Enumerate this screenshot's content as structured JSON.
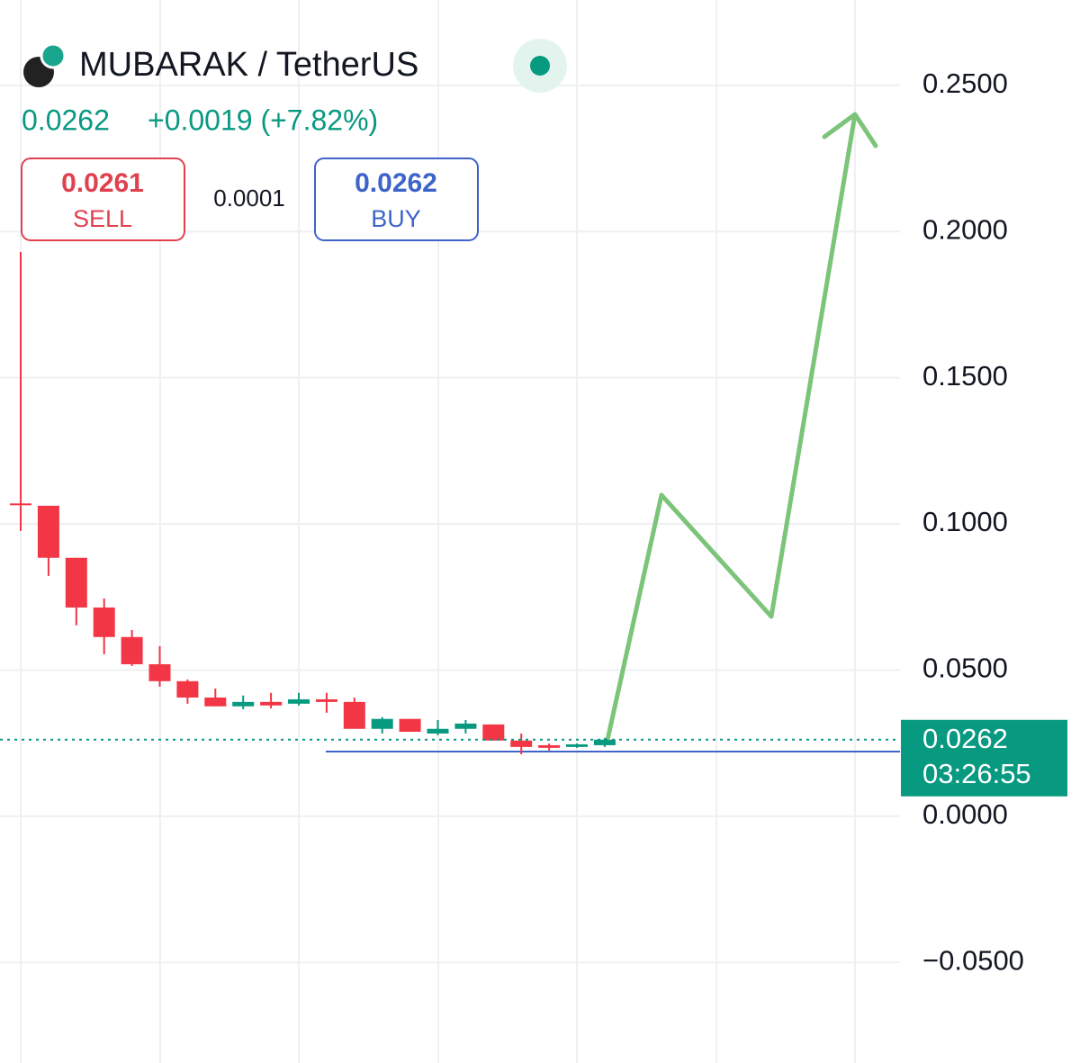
{
  "header": {
    "title": "MUBARAK / TetherUS",
    "price": 0.0262,
    "change": "+0.0019 (+7.82%)",
    "sell_price": "0.0261",
    "sell_label": "SELL",
    "spread": "0.0001",
    "buy_price": "0.0262",
    "buy_label": "BUY"
  },
  "chart_data": {
    "type": "candlestick",
    "open": [
      0.107,
      0.1062,
      0.0884,
      0.0714,
      0.0613,
      0.052,
      0.0462,
      0.0406,
      0.0376,
      0.0391,
      0.0385,
      0.04,
      0.0391,
      0.0299,
      0.0333,
      0.0283,
      0.0299,
      0.0314,
      0.0259,
      0.0243,
      0.0237,
      0.0243
    ],
    "high": [
      0.193,
      0.1062,
      0.0884,
      0.0745,
      0.0637,
      0.0582,
      0.0468,
      0.0437,
      0.0413,
      0.0422,
      0.0422,
      0.0422,
      0.0406,
      0.0339,
      0.0333,
      0.0329,
      0.0329,
      0.0314,
      0.0283,
      0.0249,
      0.0249,
      0.0268
    ],
    "low": [
      0.0976,
      0.0822,
      0.0653,
      0.0554,
      0.0514,
      0.0443,
      0.0385,
      0.0376,
      0.0366,
      0.0369,
      0.0379,
      0.0354,
      0.0299,
      0.0283,
      0.0289,
      0.0277,
      0.0283,
      0.0259,
      0.0212,
      0.0225,
      0.0234,
      0.0237
    ],
    "close": [
      0.1065,
      0.0884,
      0.0714,
      0.0613,
      0.052,
      0.0462,
      0.0406,
      0.0376,
      0.0391,
      0.0379,
      0.04,
      0.0391,
      0.0299,
      0.0333,
      0.0289,
      0.0299,
      0.0317,
      0.0259,
      0.0237,
      0.0234,
      0.0246,
      0.0262
    ],
    "up_color": "#089981",
    "down_color": "#f23645",
    "ylim": [
      -0.0844,
      0.2792
    ],
    "yticks": [
      {
        "value": 0.25,
        "label": "0.2500"
      },
      {
        "value": 0.2,
        "label": "0.2000"
      },
      {
        "value": 0.15,
        "label": "0.1500"
      },
      {
        "value": 0.1,
        "label": "0.1000"
      },
      {
        "value": 0.05,
        "label": "0.0500"
      },
      {
        "value": 0,
        "label": "0.0000"
      },
      {
        "value": -0.05,
        "label": "−0.0500"
      }
    ],
    "grid": true,
    "last_price": 0.0262,
    "countdown": "03:26:55"
  }
}
